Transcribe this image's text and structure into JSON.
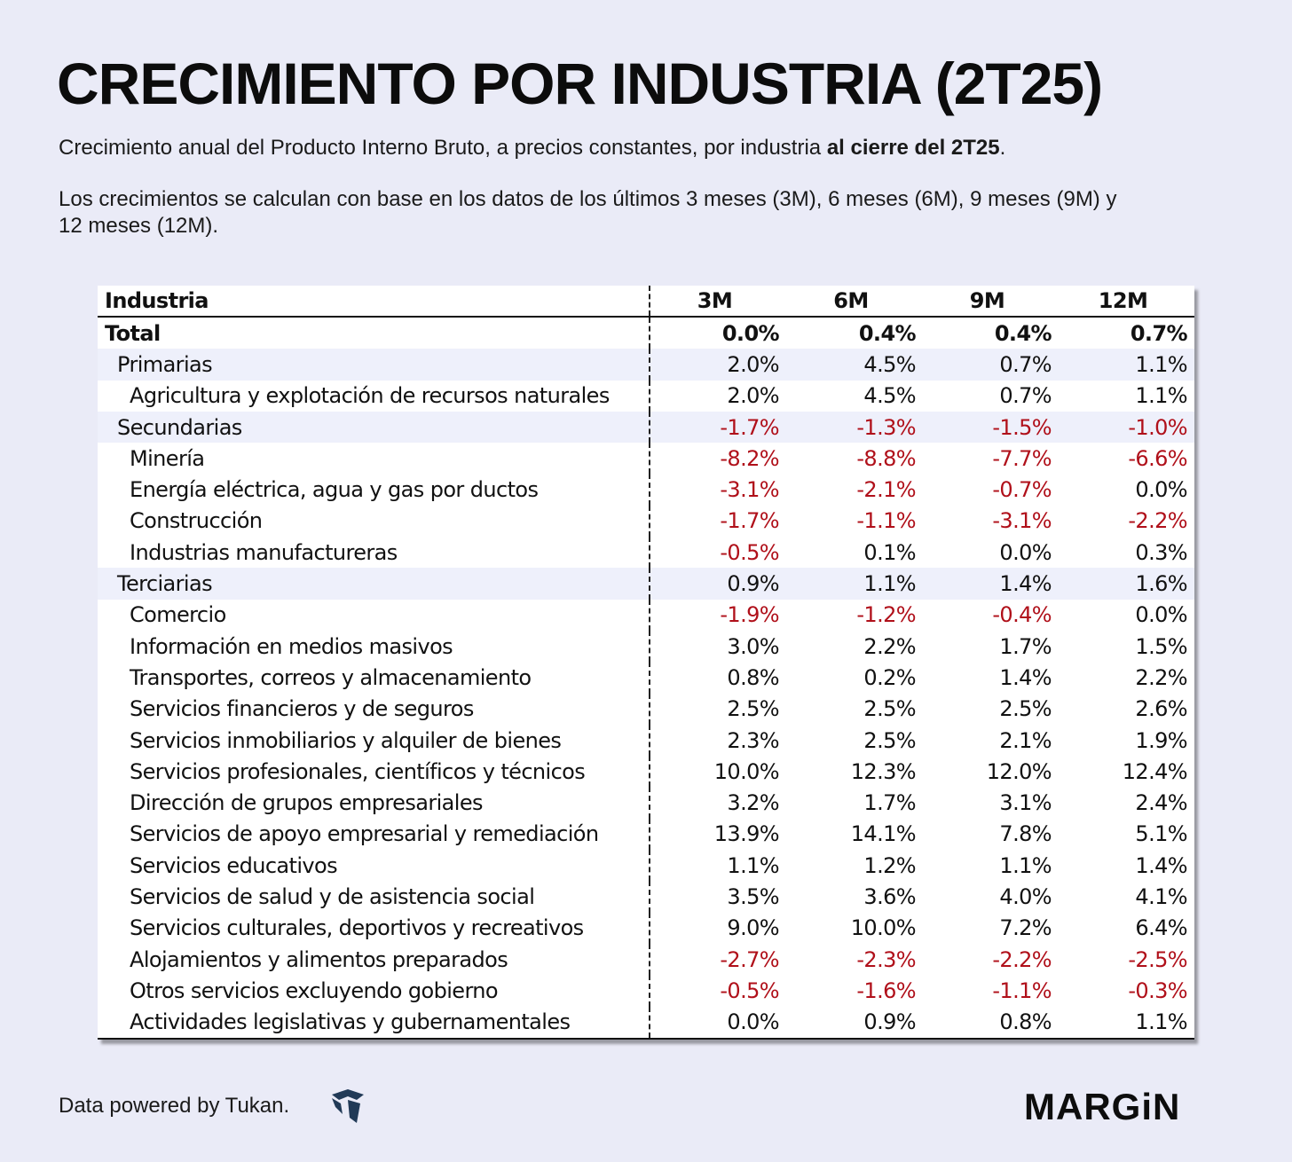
{
  "title": "CRECIMIENTO POR INDUSTRIA (2T25)",
  "subtitle": {
    "line1_plain": "Crecimiento anual del Producto Interno Bruto, a precios constantes, por industria ",
    "line1_bold": "al cierre del 2T25",
    "line1_end": ".",
    "line2": "Los crecimientos se calculan con base en los datos de los últimos 3 meses (3M), 6 meses (6M), 9 meses (9M) y 12 meses (12M)."
  },
  "colors": {
    "background": "#eaebf7",
    "negative": "#b0101a",
    "group_row": "#eef0fb"
  },
  "table": {
    "headers": [
      "Industria",
      "3M",
      "6M",
      "9M",
      "12M"
    ],
    "rows": [
      {
        "name": "Total",
        "level": 0,
        "values": [
          "0.0%",
          "0.4%",
          "0.4%",
          "0.7%"
        ]
      },
      {
        "name": "Primarias",
        "level": 1,
        "values": [
          "2.0%",
          "4.5%",
          "0.7%",
          "1.1%"
        ]
      },
      {
        "name": "Agricultura y explotación de recursos naturales",
        "level": 2,
        "values": [
          "2.0%",
          "4.5%",
          "0.7%",
          "1.1%"
        ]
      },
      {
        "name": "Secundarias",
        "level": 1,
        "values": [
          "-1.7%",
          "-1.3%",
          "-1.5%",
          "-1.0%"
        ]
      },
      {
        "name": "Minería",
        "level": 2,
        "values": [
          "-8.2%",
          "-8.8%",
          "-7.7%",
          "-6.6%"
        ]
      },
      {
        "name": "Energía eléctrica, agua y gas por ductos",
        "level": 2,
        "values": [
          "-3.1%",
          "-2.1%",
          "-0.7%",
          "0.0%"
        ]
      },
      {
        "name": "Construcción",
        "level": 2,
        "values": [
          "-1.7%",
          "-1.1%",
          "-3.1%",
          "-2.2%"
        ]
      },
      {
        "name": "Industrias manufactureras",
        "level": 2,
        "values": [
          "-0.5%",
          "0.1%",
          "0.0%",
          "0.3%"
        ]
      },
      {
        "name": "Terciarias",
        "level": 1,
        "values": [
          "0.9%",
          "1.1%",
          "1.4%",
          "1.6%"
        ]
      },
      {
        "name": "Comercio",
        "level": 2,
        "values": [
          "-1.9%",
          "-1.2%",
          "-0.4%",
          "0.0%"
        ]
      },
      {
        "name": "Información en medios masivos",
        "level": 2,
        "values": [
          "3.0%",
          "2.2%",
          "1.7%",
          "1.5%"
        ]
      },
      {
        "name": "Transportes, correos y almacenamiento",
        "level": 2,
        "values": [
          "0.8%",
          "0.2%",
          "1.4%",
          "2.2%"
        ]
      },
      {
        "name": "Servicios financieros y de seguros",
        "level": 2,
        "values": [
          "2.5%",
          "2.5%",
          "2.5%",
          "2.6%"
        ]
      },
      {
        "name": "Servicios inmobiliarios y alquiler de bienes",
        "level": 2,
        "values": [
          "2.3%",
          "2.5%",
          "2.1%",
          "1.9%"
        ]
      },
      {
        "name": "Servicios profesionales, científicos y técnicos",
        "level": 2,
        "values": [
          "10.0%",
          "12.3%",
          "12.0%",
          "12.4%"
        ]
      },
      {
        "name": "Dirección de grupos empresariales",
        "level": 2,
        "values": [
          "3.2%",
          "1.7%",
          "3.1%",
          "2.4%"
        ]
      },
      {
        "name": "Servicios de apoyo empresarial y remediación",
        "level": 2,
        "values": [
          "13.9%",
          "14.1%",
          "7.8%",
          "5.1%"
        ]
      },
      {
        "name": "Servicios educativos",
        "level": 2,
        "values": [
          "1.1%",
          "1.2%",
          "1.1%",
          "1.4%"
        ]
      },
      {
        "name": "Servicios de salud y de asistencia social",
        "level": 2,
        "values": [
          "3.5%",
          "3.6%",
          "4.0%",
          "4.1%"
        ]
      },
      {
        "name": "Servicios culturales, deportivos y recreativos",
        "level": 2,
        "values": [
          "9.0%",
          "10.0%",
          "7.2%",
          "6.4%"
        ]
      },
      {
        "name": "Alojamientos y alimentos preparados",
        "level": 2,
        "values": [
          "-2.7%",
          "-2.3%",
          "-2.2%",
          "-2.5%"
        ]
      },
      {
        "name": "Otros servicios excluyendo gobierno",
        "level": 2,
        "values": [
          "-0.5%",
          "-1.6%",
          "-1.1%",
          "-0.3%"
        ]
      },
      {
        "name": "Actividades legislativas y gubernamentales",
        "level": 2,
        "values": [
          "0.0%",
          "0.9%",
          "0.8%",
          "1.1%"
        ]
      }
    ]
  },
  "footer": {
    "source": "Data powered by Tukan.",
    "source_icon": "tukan-logo-icon",
    "brand": "MARGiN"
  }
}
